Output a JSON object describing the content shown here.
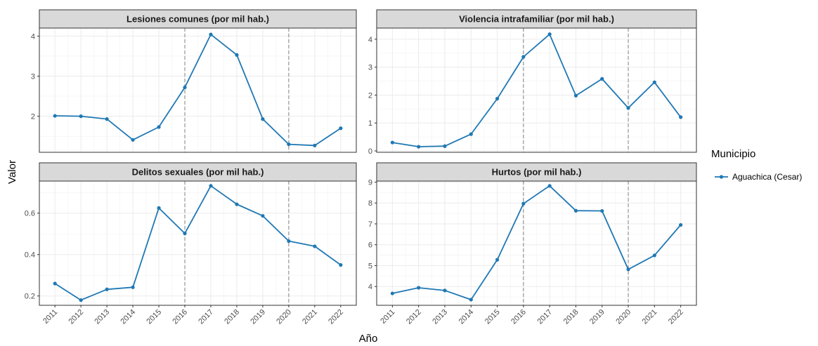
{
  "chart_data": {
    "type": "line",
    "x_axis_title": "Año",
    "y_axis_title": "Valor",
    "categories": [
      "2011",
      "2012",
      "2013",
      "2014",
      "2015",
      "2016",
      "2017",
      "2018",
      "2019",
      "2020",
      "2021",
      "2022"
    ],
    "reference_lines_x": [
      "2016",
      "2020"
    ],
    "grid": true,
    "legend": {
      "title": "Municipio",
      "placement": "right",
      "entries": [
        "Aguachica (Cesar)"
      ]
    },
    "series_color": "#1f78b4",
    "panels": [
      {
        "title": "Lesiones comunes (por mil hab.)",
        "ylim": [
          1.1,
          4.2
        ],
        "y_ticks": [
          2,
          3,
          4
        ],
        "series": [
          {
            "name": "Aguachica (Cesar)",
            "values": [
              2.01,
              2.0,
              1.93,
              1.41,
              1.73,
              2.72,
              4.04,
              3.53,
              1.93,
              1.3,
              1.27,
              1.7
            ]
          }
        ]
      },
      {
        "title": "Violencia intrafamiliar (por mil hab.)",
        "ylim": [
          -0.05,
          4.4
        ],
        "y_ticks": [
          0,
          1,
          2,
          3,
          4
        ],
        "series": [
          {
            "name": "Aguachica (Cesar)",
            "values": [
              0.3,
              0.15,
              0.17,
              0.6,
              1.87,
              3.37,
              4.18,
              1.98,
              2.58,
              1.54,
              2.46,
              1.21
            ]
          }
        ]
      },
      {
        "title": "Delitos sexuales (por mil hab.)",
        "ylim": [
          0.155,
          0.755
        ],
        "y_ticks": [
          0.2,
          0.4,
          0.6
        ],
        "series": [
          {
            "name": "Aguachica (Cesar)",
            "values": [
              0.26,
              0.18,
              0.232,
              0.242,
              0.625,
              0.502,
              0.732,
              0.643,
              0.587,
              0.465,
              0.44,
              0.35
            ]
          }
        ]
      },
      {
        "title": "Hurtos (por mil hab.)",
        "ylim": [
          3.1,
          9.05
        ],
        "y_ticks": [
          4,
          5,
          6,
          7,
          8,
          9
        ],
        "series": [
          {
            "name": "Aguachica (Cesar)",
            "values": [
              3.67,
              3.94,
              3.81,
              3.37,
              5.28,
              7.97,
              8.82,
              7.63,
              7.62,
              4.82,
              5.49,
              6.95
            ]
          }
        ]
      }
    ]
  }
}
